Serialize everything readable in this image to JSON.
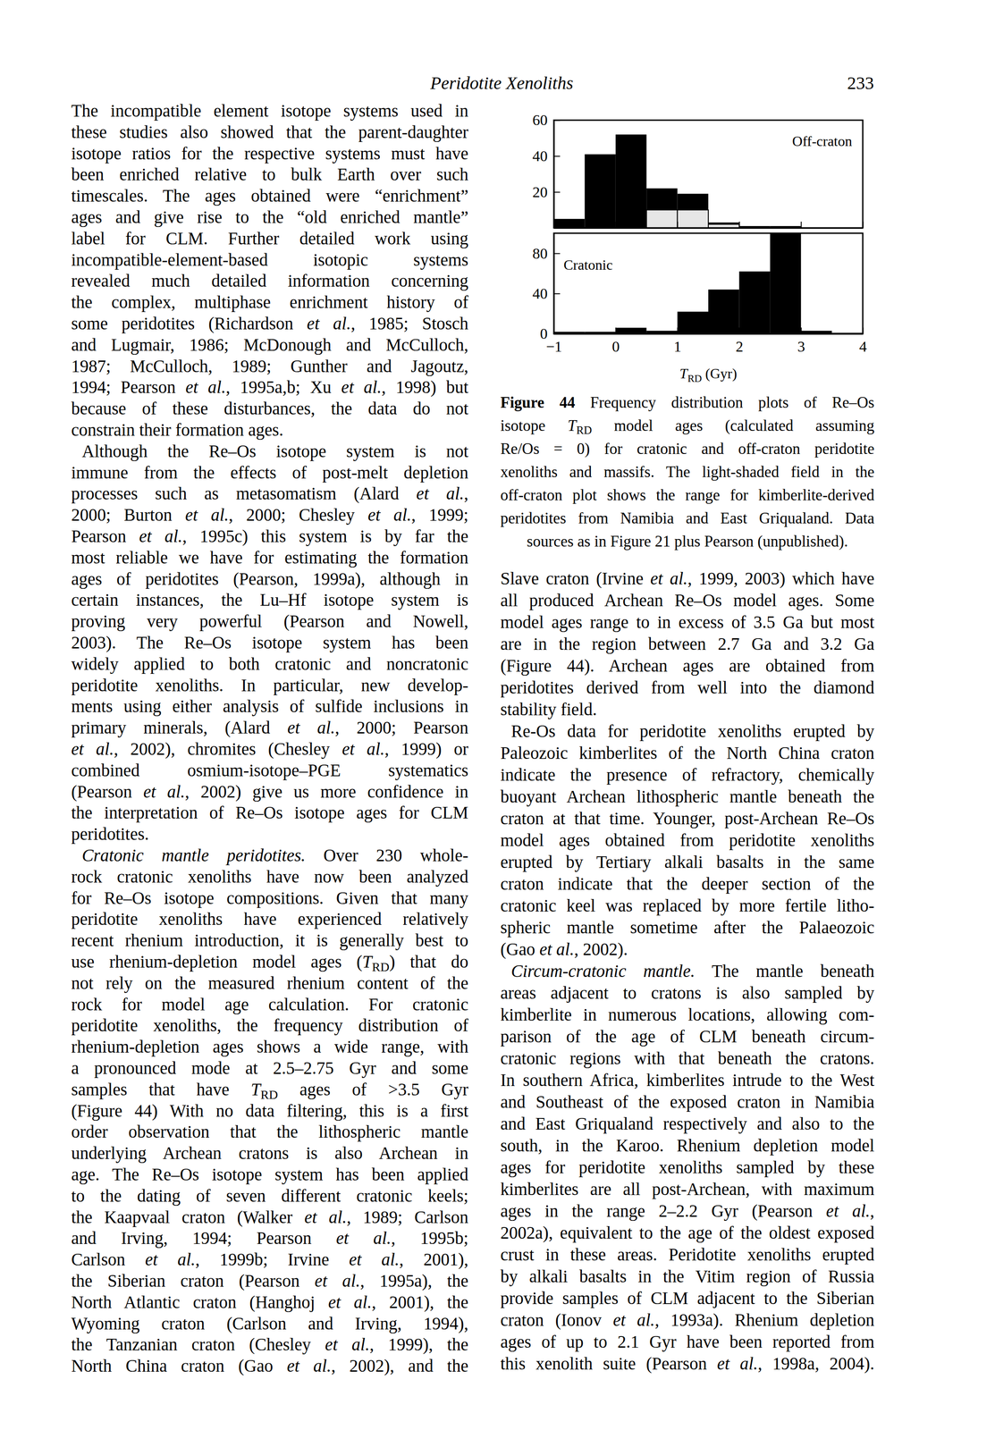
{
  "page": {
    "header": "Peridotite Xenoliths",
    "page_number": "233",
    "left_column": [
      [
        [
          "The incompatible element isotope systems used in"
        ],
        [
          "these studies also showed that the parent-daughter"
        ],
        [
          "isotope ratios for the respective systems must have"
        ],
        [
          "been enriched relative to bulk Earth over such"
        ],
        [
          "timescales. The ages obtained were “enrichment”"
        ],
        [
          "ages and give rise to the “old enriched mantle”"
        ],
        [
          "label for CLM. Further detailed work using"
        ],
        [
          "incompatible-element-based isotopic systems"
        ],
        [
          "revealed much detailed information concerning"
        ],
        [
          "the complex, multiphase enrichment history of"
        ],
        [
          "some peridotites (Richardson ",
          {
            "italic": "et al."
          },
          ", 1985; Stosch"
        ],
        [
          "and Lugmair, 1986; McDonough and McCulloch,"
        ],
        [
          "1987; McCulloch, 1989; Gunther and Jagoutz,"
        ],
        [
          "1994; Pearson ",
          {
            "italic": "et al."
          },
          ", 1995a,b; Xu ",
          {
            "italic": "et al."
          },
          ", 1998) but"
        ],
        [
          "because of these disturbances, the data do not"
        ],
        [
          "constrain their formation ages."
        ]
      ],
      [
        [
          "Although the Re–Os isotope system is not"
        ],
        [
          "immune from the effects of post-melt depletion"
        ],
        [
          "processes such as metasomatism (Alard ",
          {
            "italic": "et al."
          },
          ","
        ],
        [
          "2000; Burton ",
          {
            "italic": "et al."
          },
          ", 2000; Chesley ",
          {
            "italic": "et al."
          },
          ", 1999;"
        ],
        [
          "Pearson ",
          {
            "italic": "et al."
          },
          ", 1995c) this system is by far the"
        ],
        [
          "most reliable we have for estimating the formation"
        ],
        [
          "ages of peridotites (Pearson, 1999a), although in"
        ],
        [
          "certain instances, the Lu–Hf isotope system is"
        ],
        [
          "proving very powerful (Pearson and Nowell,"
        ],
        [
          "2003). The Re–Os isotope system has been"
        ],
        [
          "widely applied to both cratonic and noncratonic"
        ],
        [
          "peridotite xenoliths. In particular, new develop-"
        ],
        [
          "ments using either analysis of sulfide inclusions in"
        ],
        [
          "primary minerals, (Alard ",
          {
            "italic": "et al."
          },
          ", 2000; Pearson"
        ],
        [
          {
            "italic": "et al."
          },
          ", 2002), chromites (Chesley ",
          {
            "italic": "et al."
          },
          ", 1999) or"
        ],
        [
          "combined osmium-isotope–PGE systematics"
        ],
        [
          "(Pearson ",
          {
            "italic": "et al."
          },
          ", 2002) give us more confidence in"
        ],
        [
          "the interpretation of Re–Os isotope ages for CLM"
        ],
        [
          "peridotites."
        ]
      ],
      [
        [
          {
            "italic": "Cratonic mantle peridotites."
          },
          " Over 230 whole-"
        ],
        [
          "rock cratonic xenoliths have now been analyzed"
        ],
        [
          "for Re–Os isotope compositions. Given that many"
        ],
        [
          "peridotite xenoliths have experienced relatively"
        ],
        [
          "recent rhenium introduction, it is generally best to"
        ],
        [
          "use rhenium-depletion model ages (",
          {
            "italic": "T"
          },
          {
            "sub": "RD"
          },
          ") that do"
        ],
        [
          "not rely on the measured rhenium content of the"
        ],
        [
          "rock for model age calculation. For cratonic"
        ],
        [
          "peridotite xenoliths, the frequency distribution of"
        ],
        [
          "rhenium-depletion ages shows a wide range, with"
        ],
        [
          "a pronounced mode at 2.5–2.75 Gyr and some"
        ],
        [
          "samples that have ",
          {
            "italic": "T"
          },
          {
            "sub": "RD"
          },
          " ages of >3.5 Gyr"
        ],
        [
          "(Figure 44) With no data filtering, this is a first"
        ],
        [
          "order observation that the lithospheric mantle"
        ],
        [
          "underlying Archean cratons is also Archean in"
        ],
        [
          "age. The Re–Os isotope system has been applied"
        ],
        [
          "to the dating of seven different cratonic keels;"
        ],
        [
          "the Kaapvaal craton (Walker ",
          {
            "italic": "et al."
          },
          ", 1989; Carlson"
        ],
        [
          "and Irving, 1994; Pearson ",
          {
            "italic": "et al."
          },
          ", 1995b;"
        ],
        [
          "Carlson ",
          {
            "italic": "et al."
          },
          ", 1999b; Irvine ",
          {
            "italic": "et al."
          },
          ", 2001),"
        ],
        [
          "the Siberian craton (Pearson ",
          {
            "italic": "et al."
          },
          ", 1995a), the"
        ],
        [
          "North Atlantic craton (Hanghoj ",
          {
            "italic": "et al."
          },
          ", 2001), the"
        ],
        [
          "Wyoming craton (Carlson and Irving, 1994),"
        ],
        [
          "the Tanzanian craton (Chesley ",
          {
            "italic": "et al."
          },
          ", 1999), the"
        ],
        [
          "North China craton (Gao ",
          {
            "italic": "et al."
          },
          ", 2002), and the"
        ]
      ]
    ],
    "right_column": [
      [
        [
          "Slave craton (Irvine ",
          {
            "italic": "et al."
          },
          ", 1999, 2003) which have"
        ],
        [
          "all produced Archean Re–Os model ages. Some"
        ],
        [
          "model ages range to in excess of 3.5 Ga but most"
        ],
        [
          "are in the region between 2.7 Ga and 3.2 Ga"
        ],
        [
          "(Figure 44). Archean ages are obtained from"
        ],
        [
          "peridotites derived from well into the diamond"
        ],
        [
          "stability field."
        ]
      ],
      [
        [
          "Re-Os data for peridotite xenoliths erupted by"
        ],
        [
          "Paleozoic kimberlites of the North China craton"
        ],
        [
          "indicate the presence of refractory, chemically"
        ],
        [
          "buoyant Archean lithospheric mantle beneath the"
        ],
        [
          "craton at that time. Younger, post-Archean Re–Os"
        ],
        [
          "model ages obtained from peridotite xenoliths"
        ],
        [
          "erupted by Tertiary alkali basalts in the same"
        ],
        [
          "craton indicate that the deeper section of the"
        ],
        [
          "cratonic keel was replaced by more fertile litho-"
        ],
        [
          "spheric mantle sometime after the Palaeozoic"
        ],
        [
          "(Gao ",
          {
            "italic": "et al."
          },
          ", 2002)."
        ]
      ],
      [
        [
          {
            "italic": "Circum-cratonic mantle."
          },
          " The mantle beneath"
        ],
        [
          "areas adjacent to cratons is also sampled by"
        ],
        [
          "kimberlite in numerous locations, allowing com-"
        ],
        [
          "parison of the age of CLM beneath circum-"
        ],
        [
          "cratonic regions with that beneath the cratons."
        ],
        [
          "In southern Africa, kimberlites intrude to the West"
        ],
        [
          "and Southeast of the exposed craton in Namibia"
        ],
        [
          "and East Griqualand respectively and also to the"
        ],
        [
          "south, in the Karoo. Rhenium depletion model"
        ],
        [
          "ages for peridotite xenoliths sampled by these"
        ],
        [
          "kimberlites are all post-Archean, with maximum"
        ],
        [
          "ages in the range 2–2.2 Gyr (Pearson ",
          {
            "italic": "et al."
          },
          ","
        ],
        [
          "2002a), equivalent to the age of the oldest exposed"
        ],
        [
          "crust in these areas. Peridotite xenoliths erupted"
        ],
        [
          "by alkali basalts in the Vitim region of Russia"
        ],
        [
          "provide samples of CLM adjacent to the Siberian"
        ],
        [
          "craton (Ionov ",
          {
            "italic": "et al."
          },
          ", 1993a). Rhenium depletion"
        ],
        [
          "ages of up to 2.1 Gyr have been reported from"
        ],
        [
          "this xenolith suite (Pearson ",
          {
            "italic": "et al."
          },
          ", 1998a, 2004)."
        ]
      ]
    ],
    "figure_caption": [
      [
        {
          "bold": "Figure 44"
        },
        " Frequency distribution plots of Re–Os"
      ],
      [
        "isotope ",
        {
          "italic": "T"
        },
        {
          "sub": "RD"
        },
        " model ages (calculated assuming"
      ],
      [
        "Re/Os = 0) for cratonic and off-craton peridotite"
      ],
      [
        "xenoliths and massifs. The light-shaded field in the"
      ],
      [
        "off-craton plot shows the range for kimberlite-derived"
      ],
      [
        "peridotites from Namibia and East Griqualand. Data"
      ],
      [
        "sources as in Figure 21 plus Pearson (unpublished)."
      ]
    ]
  },
  "chart_data": [
    {
      "type": "histogram",
      "title": "Off-craton",
      "bins": [
        -1,
        -0.5,
        0,
        0.5,
        1,
        1.5,
        2,
        2.5,
        3,
        3.5,
        4
      ],
      "series": [
        {
          "color": "#000000",
          "values": [
            5,
            41,
            52,
            22,
            19,
            3,
            1,
            1,
            0,
            0
          ]
        },
        {
          "color": "#e6e6e6",
          "values": [
            0,
            0,
            0,
            10,
            10,
            2,
            0,
            0,
            0,
            0
          ]
        }
      ],
      "xlim": [
        -1,
        4
      ],
      "xticks": [
        {
          "value": -1,
          "label": "−1"
        },
        0,
        1,
        2,
        3,
        4
      ],
      "ylim": [
        0,
        60
      ],
      "yticks": [
        20,
        40,
        60
      ],
      "tick_labels": "y"
    },
    {
      "type": "histogram",
      "title": "Cratonic",
      "x_label": [
        {
          "italic": "T"
        },
        {
          "sub": "RD"
        },
        " (Gyr)"
      ],
      "bins": [
        -1,
        -0.5,
        0,
        0.5,
        1,
        1.5,
        2,
        2.5,
        3,
        3.5,
        4
      ],
      "series": [
        {
          "color": "#000000",
          "values": [
            2,
            2,
            6,
            3,
            22,
            44,
            62,
            100,
            3,
            1
          ]
        }
      ],
      "xlim": [
        -1,
        4
      ],
      "xticks": [
        {
          "value": -1,
          "label": "−1"
        },
        0,
        1,
        2,
        3,
        4
      ],
      "ylim": [
        0,
        100
      ],
      "yticks": [
        0,
        40,
        80
      ]
    }
  ]
}
